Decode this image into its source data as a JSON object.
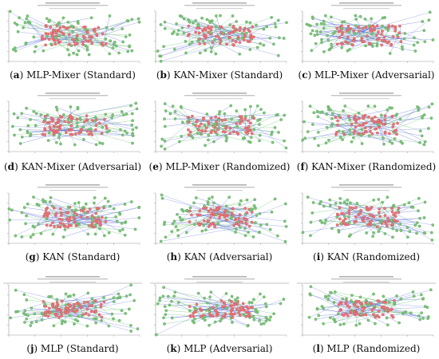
{
  "figure": {
    "panels": [
      {
        "id": "a",
        "letter": "a",
        "label": "MLP-Mixer (Standard)",
        "style": "mixer"
      },
      {
        "id": "b",
        "letter": "b",
        "label": "KAN-Mixer (Standard)",
        "style": "mixer"
      },
      {
        "id": "c",
        "letter": "c",
        "label": "MLP-Mixer (Adversarial)",
        "style": "mixer"
      },
      {
        "id": "d",
        "letter": "d",
        "label": "KAN-Mixer (Adversarial)",
        "style": "mixer"
      },
      {
        "id": "e",
        "letter": "e",
        "label": "MLP-Mixer (Randomized)",
        "style": "mixer"
      },
      {
        "id": "f",
        "letter": "f",
        "label": "KAN-Mixer (Randomized)",
        "style": "mixer"
      },
      {
        "id": "g",
        "letter": "g",
        "label": "KAN (Standard)",
        "style": "kan"
      },
      {
        "id": "h",
        "letter": "h",
        "label": "KAN (Adversarial)",
        "style": "kan"
      },
      {
        "id": "i",
        "letter": "i",
        "label": "KAN (Randomized)",
        "style": "kan"
      },
      {
        "id": "j",
        "letter": "j",
        "label": "MLP (Standard)",
        "style": "mlp"
      },
      {
        "id": "k",
        "letter": "k",
        "label": "MLP (Adversarial)",
        "style": "mlp"
      },
      {
        "id": "l",
        "letter": "l",
        "label": "MLP (Randomized)",
        "style": "mlp"
      }
    ],
    "colors": {
      "green_point": "#7cc47a",
      "red_point": "#e8767a",
      "blue_line": "#5b6fd6",
      "green_line": "#6fbf73",
      "axis": "#9a9a9a",
      "title_text": "#444444"
    }
  }
}
